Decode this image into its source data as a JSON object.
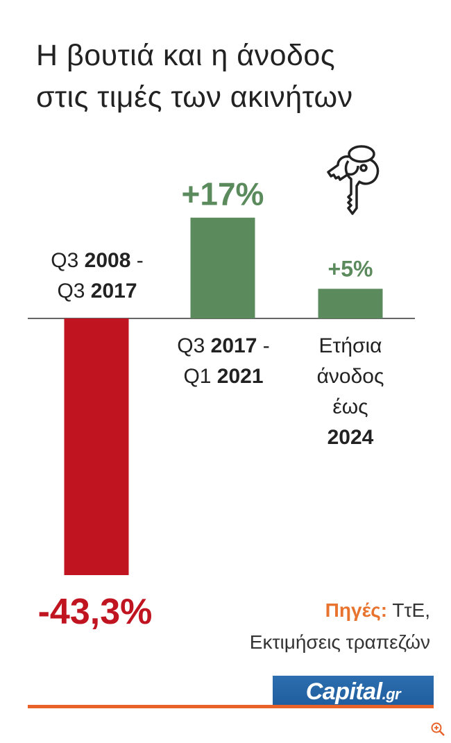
{
  "title": {
    "line1": "Η βουτιά και η άνοδος",
    "line2": "στις τιμές των ακινήτων"
  },
  "chart_data": {
    "type": "bar",
    "title": "Η βουτιά και η άνοδος στις τιμές των ακινήτων",
    "categories": [
      {
        "pre": "Q3 ",
        "b1": "2008",
        "mid": " -",
        "pre2": "Q3 ",
        "b2": "2017"
      },
      {
        "pre": "Q3 ",
        "b1": "2017",
        "mid": " -",
        "pre2": "Q1 ",
        "b2": "2021"
      },
      {
        "lines": [
          "Ετήσια",
          "άνοδος",
          "έως"
        ],
        "bold": "2024"
      }
    ],
    "category_names": [
      "Q3 2008 - Q3 2017",
      "Q3 2017 - Q1 2021",
      "Ετήσια άνοδος έως 2024"
    ],
    "values": [
      -43.3,
      17,
      5
    ],
    "value_labels": [
      "-43,3%",
      "+17%",
      "+5%"
    ],
    "colors": [
      "#c01421",
      "#5b8a5d",
      "#5b8a5d"
    ],
    "xlabel": "",
    "ylabel": "",
    "grid": false,
    "legend": "none"
  },
  "source": {
    "label": "Πηγές:",
    "line1": "ΤτΕ,",
    "line2": "Εκτιμήσεις τραπεζών"
  },
  "logo": {
    "text": "Capital",
    "tld": ".gr"
  },
  "icons": {
    "keys": "keys-icon",
    "zoom": "zoom-in-icon"
  },
  "colors": {
    "negative": "#c01421",
    "positive": "#5b8a5d",
    "accent": "#e8622a",
    "logo": "#1f5c9c"
  }
}
